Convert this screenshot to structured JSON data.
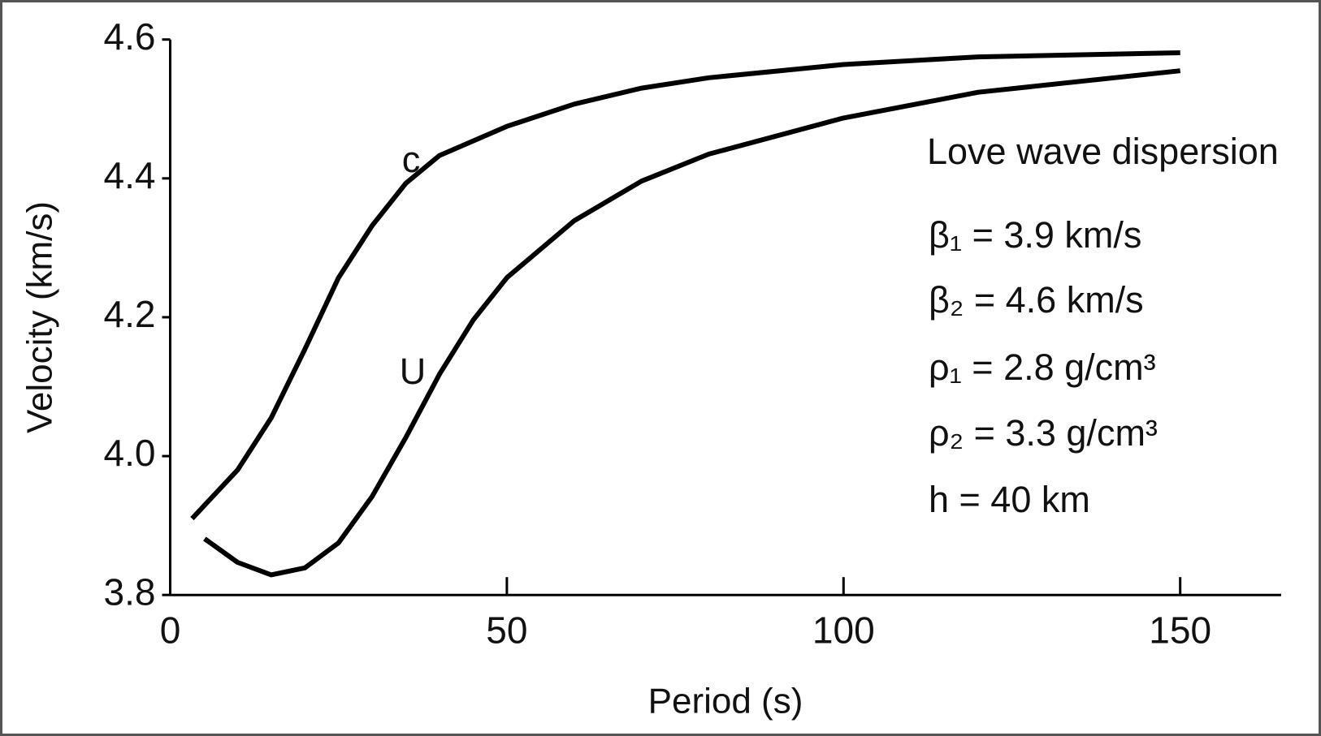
{
  "chart_data": {
    "type": "line",
    "xlabel": "Period (s)",
    "ylabel": "Velocity (km/s)",
    "xlim": [
      0,
      165
    ],
    "ylim": [
      3.8,
      4.6
    ],
    "xticks": [
      0,
      50,
      100,
      150
    ],
    "yticks": [
      3.8,
      {
        "value": 4,
        "label": "4.0"
      },
      4.2,
      4.4,
      4.6
    ],
    "grid": false,
    "series": [
      {
        "name": "c",
        "color": "#000000",
        "x": [
          3.25,
          10,
          15,
          20,
          25,
          30,
          35,
          40,
          50,
          60,
          70,
          80,
          100,
          120,
          150
        ],
        "values": [
          3.91,
          3.98,
          4.055,
          4.154,
          4.257,
          4.332,
          4.393,
          4.433,
          4.475,
          4.507,
          4.53,
          4.545,
          4.564,
          4.575,
          4.581
        ]
      },
      {
        "name": "U",
        "color": "#000000",
        "x": [
          5.1,
          10,
          15,
          20,
          25,
          30,
          35,
          40,
          45,
          50,
          60,
          70,
          80,
          100,
          120,
          150
        ],
        "values": [
          3.881,
          3.847,
          3.829,
          3.839,
          3.875,
          3.942,
          4.027,
          4.118,
          4.196,
          4.257,
          4.339,
          4.396,
          4.435,
          4.487,
          4.524,
          4.555
        ]
      }
    ],
    "annotations": [
      "Love wave dispersion",
      "β₁ = 3.9 km/s",
      "β₂ = 4.6 km/s",
      "ρ₁ = 2.8 g/cm³",
      "ρ₂ = 3.3 g/cm³",
      "h = 40 km"
    ]
  }
}
